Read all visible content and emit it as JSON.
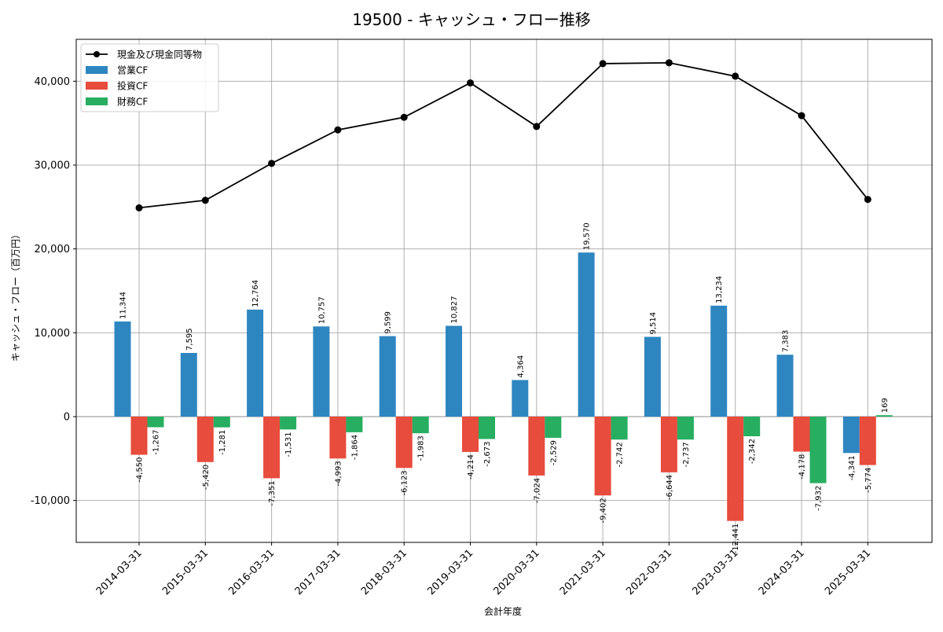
{
  "chart_data": {
    "type": "bar",
    "title": "19500 - キャッシュ・フロー推移",
    "xlabel": "会計年度",
    "ylabel": "キャッシュ・フロー（百万円）",
    "ylim": [
      -15000,
      45000
    ],
    "yticks": [
      -10000,
      0,
      10000,
      20000,
      30000,
      40000
    ],
    "ytick_labels": [
      "-10,000",
      "0",
      "10,000",
      "20,000",
      "30,000",
      "40,000"
    ],
    "grid": true,
    "legend_position": "top-left",
    "categories": [
      "2014-03-31",
      "2015-03-31",
      "2016-03-31",
      "2017-03-31",
      "2018-03-31",
      "2019-03-31",
      "2020-03-31",
      "2021-03-31",
      "2022-03-31",
      "2023-03-31",
      "2024-03-31",
      "2025-03-31"
    ],
    "series": [
      {
        "name": "営業CF",
        "kind": "bar",
        "color": "#2e86c1",
        "values": [
          11344,
          7595,
          12764,
          10757,
          9599,
          10827,
          4364,
          19570,
          9514,
          13234,
          7383,
          -4341
        ],
        "labels": [
          "11,344",
          "7,595",
          "12,764",
          "10,757",
          "9,599",
          "10,827",
          "4,364",
          "19,570",
          "9,514",
          "13,234",
          "7,383",
          "-4,341"
        ]
      },
      {
        "name": "投資CF",
        "kind": "bar",
        "color": "#e74c3c",
        "values": [
          -4550,
          -5420,
          -7351,
          -4993,
          -6123,
          -4214,
          -7024,
          -9402,
          -6644,
          -12441,
          -4178,
          -5774
        ],
        "labels": [
          "-4,550",
          "-5,420",
          "-7,351",
          "-4,993",
          "-6,123",
          "-4,214",
          "-7,024",
          "-9,402",
          "-6,644",
          "-12,441",
          "-4,178",
          "-5,774"
        ]
      },
      {
        "name": "財務CF",
        "kind": "bar",
        "color": "#27ae60",
        "values": [
          -1267,
          -1281,
          -1531,
          -1864,
          -1983,
          -2673,
          -2529,
          -2742,
          -2737,
          -2342,
          -7932,
          169
        ],
        "labels": [
          "-1,267",
          "-1,281",
          "-1,531",
          "-1,864",
          "-1,983",
          "-2,673",
          "-2,529",
          "-2,742",
          "-2,737",
          "-2,342",
          "-7,932",
          "169"
        ]
      },
      {
        "name": "現金及び現金同等物",
        "kind": "line",
        "color": "#000000",
        "values": [
          24900,
          25800,
          30200,
          34200,
          35700,
          39800,
          34600,
          42100,
          42200,
          40600,
          35900,
          25900
        ]
      }
    ]
  }
}
